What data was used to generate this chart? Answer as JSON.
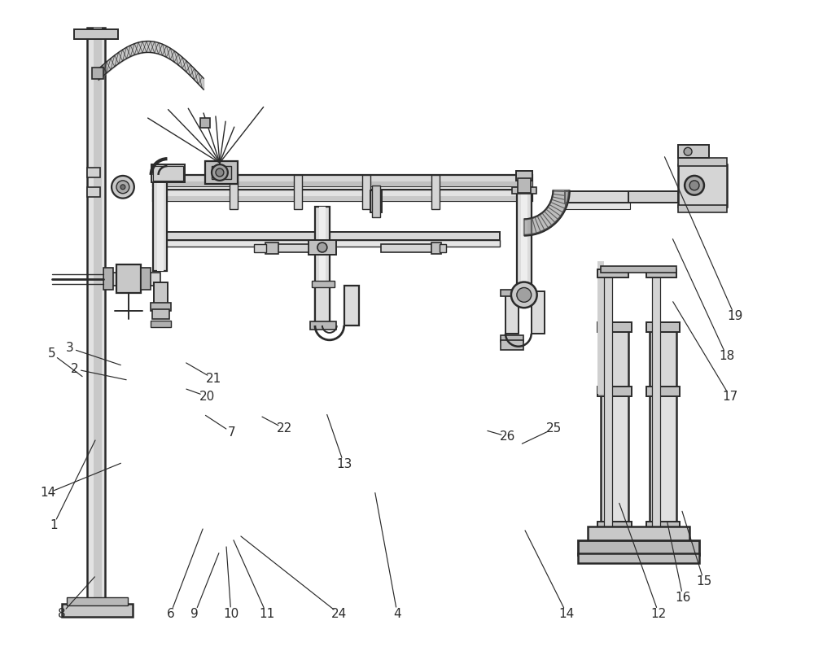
{
  "bg_color": "#ffffff",
  "lc": "#2a2a2a",
  "figsize": [
    10,
    8
  ],
  "dpi": 100,
  "annotations": [
    [
      "1",
      62,
      648,
      115,
      540
    ],
    [
      "2",
      88,
      454,
      155,
      468
    ],
    [
      "3",
      82,
      428,
      148,
      450
    ],
    [
      "4",
      488,
      758,
      460,
      605
    ],
    [
      "5",
      60,
      435,
      100,
      465
    ],
    [
      "6",
      207,
      758,
      248,
      650
    ],
    [
      "7",
      283,
      533,
      248,
      510
    ],
    [
      "8",
      72,
      758,
      115,
      710
    ],
    [
      "9",
      237,
      758,
      268,
      680
    ],
    [
      "10",
      282,
      758,
      276,
      672
    ],
    [
      "11",
      326,
      758,
      284,
      664
    ],
    [
      "12",
      812,
      758,
      762,
      618
    ],
    [
      "13",
      422,
      572,
      400,
      508
    ],
    [
      "14",
      55,
      608,
      148,
      570
    ],
    [
      "14",
      698,
      758,
      645,
      652
    ],
    [
      "15",
      868,
      718,
      840,
      628
    ],
    [
      "16",
      842,
      738,
      822,
      642
    ],
    [
      "17",
      900,
      488,
      828,
      368
    ],
    [
      "18",
      896,
      438,
      828,
      290
    ],
    [
      "19",
      906,
      388,
      818,
      188
    ],
    [
      "20",
      252,
      488,
      224,
      478
    ],
    [
      "21",
      260,
      466,
      224,
      445
    ],
    [
      "22",
      348,
      528,
      318,
      512
    ],
    [
      "24",
      416,
      758,
      292,
      660
    ],
    [
      "25",
      682,
      528,
      640,
      548
    ],
    [
      "26",
      625,
      538,
      597,
      530
    ]
  ]
}
